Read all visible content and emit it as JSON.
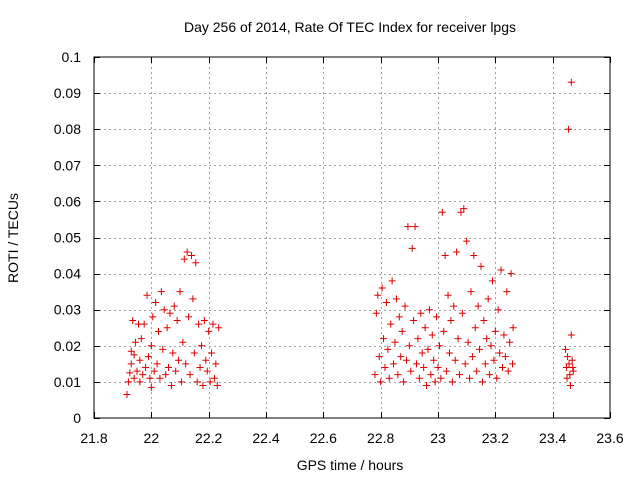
{
  "chart_data": {
    "type": "scatter",
    "title": "Day 256 of 2014, Rate Of TEC Index for receiver lpgs",
    "xlabel": "GPS time / hours",
    "ylabel": "ROTI / TECUs",
    "xlim": [
      21.8,
      23.6
    ],
    "ylim": [
      0,
      0.1
    ],
    "xticks": [
      21.8,
      22,
      22.2,
      22.4,
      22.6,
      22.8,
      23,
      23.2,
      23.4,
      23.6
    ],
    "xtick_labels": [
      "21.8",
      "22",
      "22.2",
      "22.4",
      "22.6",
      "22.8",
      "23",
      "23.2",
      "23.4",
      "23.6"
    ],
    "yticks": [
      0,
      0.01,
      0.02,
      0.03,
      0.04,
      0.05,
      0.06,
      0.07,
      0.08,
      0.09,
      0.1
    ],
    "ytick_labels": [
      "0",
      "0.01",
      "0.02",
      "0.03",
      "0.04",
      "0.05",
      "0.06",
      "0.07",
      "0.08",
      "0.09",
      "0.1"
    ],
    "grid": true,
    "marker": "+",
    "marker_color": "#dd0000",
    "series": [
      {
        "name": "lpgs",
        "points": [
          [
            21.915,
            0.0065
          ],
          [
            21.92,
            0.01
          ],
          [
            21.925,
            0.0125
          ],
          [
            21.93,
            0.015
          ],
          [
            21.93,
            0.0185
          ],
          [
            21.935,
            0.027
          ],
          [
            21.94,
            0.011
          ],
          [
            21.94,
            0.0175
          ],
          [
            21.945,
            0.021
          ],
          [
            21.95,
            0.013
          ],
          [
            21.955,
            0.026
          ],
          [
            21.96,
            0.01
          ],
          [
            21.96,
            0.016
          ],
          [
            21.965,
            0.022
          ],
          [
            21.97,
            0.012
          ],
          [
            21.975,
            0.026
          ],
          [
            21.98,
            0.014
          ],
          [
            21.985,
            0.034
          ],
          [
            21.99,
            0.017
          ],
          [
            21.995,
            0.011
          ],
          [
            22.0,
            0.0085
          ],
          [
            22.0,
            0.02
          ],
          [
            22.005,
            0.028
          ],
          [
            22.01,
            0.013
          ],
          [
            22.015,
            0.032
          ],
          [
            22.02,
            0.015
          ],
          [
            22.025,
            0.024
          ],
          [
            22.03,
            0.011
          ],
          [
            22.035,
            0.035
          ],
          [
            22.04,
            0.019
          ],
          [
            22.045,
            0.03
          ],
          [
            22.05,
            0.012
          ],
          [
            22.055,
            0.025
          ],
          [
            22.06,
            0.014
          ],
          [
            22.065,
            0.029
          ],
          [
            22.07,
            0.009
          ],
          [
            22.075,
            0.018
          ],
          [
            22.08,
            0.031
          ],
          [
            22.085,
            0.013
          ],
          [
            22.09,
            0.027
          ],
          [
            22.095,
            0.016
          ],
          [
            22.1,
            0.035
          ],
          [
            22.105,
            0.01
          ],
          [
            22.11,
            0.021
          ],
          [
            22.115,
            0.044
          ],
          [
            22.12,
            0.015
          ],
          [
            22.125,
            0.046
          ],
          [
            22.13,
            0.028
          ],
          [
            22.135,
            0.012
          ],
          [
            22.14,
            0.045
          ],
          [
            22.145,
            0.033
          ],
          [
            22.15,
            0.018
          ],
          [
            22.155,
            0.043
          ],
          [
            22.16,
            0.01
          ],
          [
            22.165,
            0.026
          ],
          [
            22.17,
            0.014
          ],
          [
            22.175,
            0.02
          ],
          [
            22.18,
            0.009
          ],
          [
            22.185,
            0.027
          ],
          [
            22.19,
            0.016
          ],
          [
            22.195,
            0.013
          ],
          [
            22.2,
            0.024
          ],
          [
            22.205,
            0.01
          ],
          [
            22.21,
            0.018
          ],
          [
            22.215,
            0.026
          ],
          [
            22.22,
            0.011
          ],
          [
            22.225,
            0.015
          ],
          [
            22.23,
            0.009
          ],
          [
            22.235,
            0.025
          ],
          [
            22.78,
            0.012
          ],
          [
            22.785,
            0.029
          ],
          [
            22.79,
            0.034
          ],
          [
            22.795,
            0.017
          ],
          [
            22.8,
            0.01
          ],
          [
            22.805,
            0.036
          ],
          [
            22.81,
            0.022
          ],
          [
            22.815,
            0.014
          ],
          [
            22.82,
            0.032
          ],
          [
            22.825,
            0.019
          ],
          [
            22.83,
            0.011
          ],
          [
            22.835,
            0.026
          ],
          [
            22.84,
            0.038
          ],
          [
            22.845,
            0.015
          ],
          [
            22.85,
            0.021
          ],
          [
            22.855,
            0.033
          ],
          [
            22.86,
            0.012
          ],
          [
            22.865,
            0.028
          ],
          [
            22.87,
            0.017
          ],
          [
            22.875,
            0.024
          ],
          [
            22.88,
            0.01
          ],
          [
            22.885,
            0.031
          ],
          [
            22.89,
            0.016
          ],
          [
            22.895,
            0.053
          ],
          [
            22.9,
            0.02
          ],
          [
            22.905,
            0.013
          ],
          [
            22.91,
            0.047
          ],
          [
            22.915,
            0.027
          ],
          [
            22.92,
            0.053
          ],
          [
            22.925,
            0.015
          ],
          [
            22.93,
            0.022
          ],
          [
            22.935,
            0.011
          ],
          [
            22.94,
            0.029
          ],
          [
            22.945,
            0.018
          ],
          [
            22.95,
            0.014
          ],
          [
            22.955,
            0.025
          ],
          [
            22.96,
            0.009
          ],
          [
            22.965,
            0.019
          ],
          [
            22.97,
            0.03
          ],
          [
            22.975,
            0.012
          ],
          [
            22.98,
            0.023
          ],
          [
            22.985,
            0.016
          ],
          [
            22.99,
            0.01
          ],
          [
            22.995,
            0.028
          ],
          [
            23.0,
            0.014
          ],
          [
            23.005,
            0.02
          ],
          [
            23.01,
            0.011
          ],
          [
            23.015,
            0.057
          ],
          [
            23.02,
            0.024
          ],
          [
            23.025,
            0.045
          ],
          [
            23.03,
            0.013
          ],
          [
            23.035,
            0.034
          ],
          [
            23.04,
            0.018
          ],
          [
            23.045,
            0.027
          ],
          [
            23.05,
            0.01
          ],
          [
            23.055,
            0.031
          ],
          [
            23.06,
            0.016
          ],
          [
            23.065,
            0.046
          ],
          [
            23.07,
            0.022
          ],
          [
            23.075,
            0.012
          ],
          [
            23.08,
            0.057
          ],
          [
            23.085,
            0.029
          ],
          [
            23.09,
            0.058
          ],
          [
            23.095,
            0.015
          ],
          [
            23.1,
            0.049
          ],
          [
            23.105,
            0.021
          ],
          [
            23.11,
            0.011
          ],
          [
            23.115,
            0.035
          ],
          [
            23.12,
            0.017
          ],
          [
            23.125,
            0.045
          ],
          [
            23.13,
            0.025
          ],
          [
            23.135,
            0.013
          ],
          [
            23.14,
            0.031
          ],
          [
            23.145,
            0.019
          ],
          [
            23.15,
            0.042
          ],
          [
            23.155,
            0.01
          ],
          [
            23.16,
            0.027
          ],
          [
            23.165,
            0.015
          ],
          [
            23.17,
            0.022
          ],
          [
            23.175,
            0.033
          ],
          [
            23.18,
            0.012
          ],
          [
            23.185,
            0.02
          ],
          [
            23.19,
            0.038
          ],
          [
            23.195,
            0.016
          ],
          [
            23.2,
            0.024
          ],
          [
            23.205,
            0.011
          ],
          [
            23.21,
            0.03
          ],
          [
            23.215,
            0.018
          ],
          [
            23.22,
            0.041
          ],
          [
            23.225,
            0.014
          ],
          [
            23.23,
            0.023
          ],
          [
            23.235,
            0.017
          ],
          [
            23.24,
            0.035
          ],
          [
            23.245,
            0.013
          ],
          [
            23.25,
            0.021
          ],
          [
            23.255,
            0.04
          ],
          [
            23.26,
            0.015
          ],
          [
            23.262,
            0.025
          ],
          [
            23.445,
            0.019
          ],
          [
            23.448,
            0.014
          ],
          [
            23.45,
            0.011
          ],
          [
            23.452,
            0.017
          ],
          [
            23.455,
            0.08
          ],
          [
            23.457,
            0.015
          ],
          [
            23.46,
            0.012
          ],
          [
            23.462,
            0.009
          ],
          [
            23.465,
            0.023
          ],
          [
            23.465,
            0.093
          ],
          [
            23.468,
            0.016
          ],
          [
            23.47,
            0.014
          ],
          [
            23.472,
            0.013
          ]
        ]
      }
    ]
  }
}
